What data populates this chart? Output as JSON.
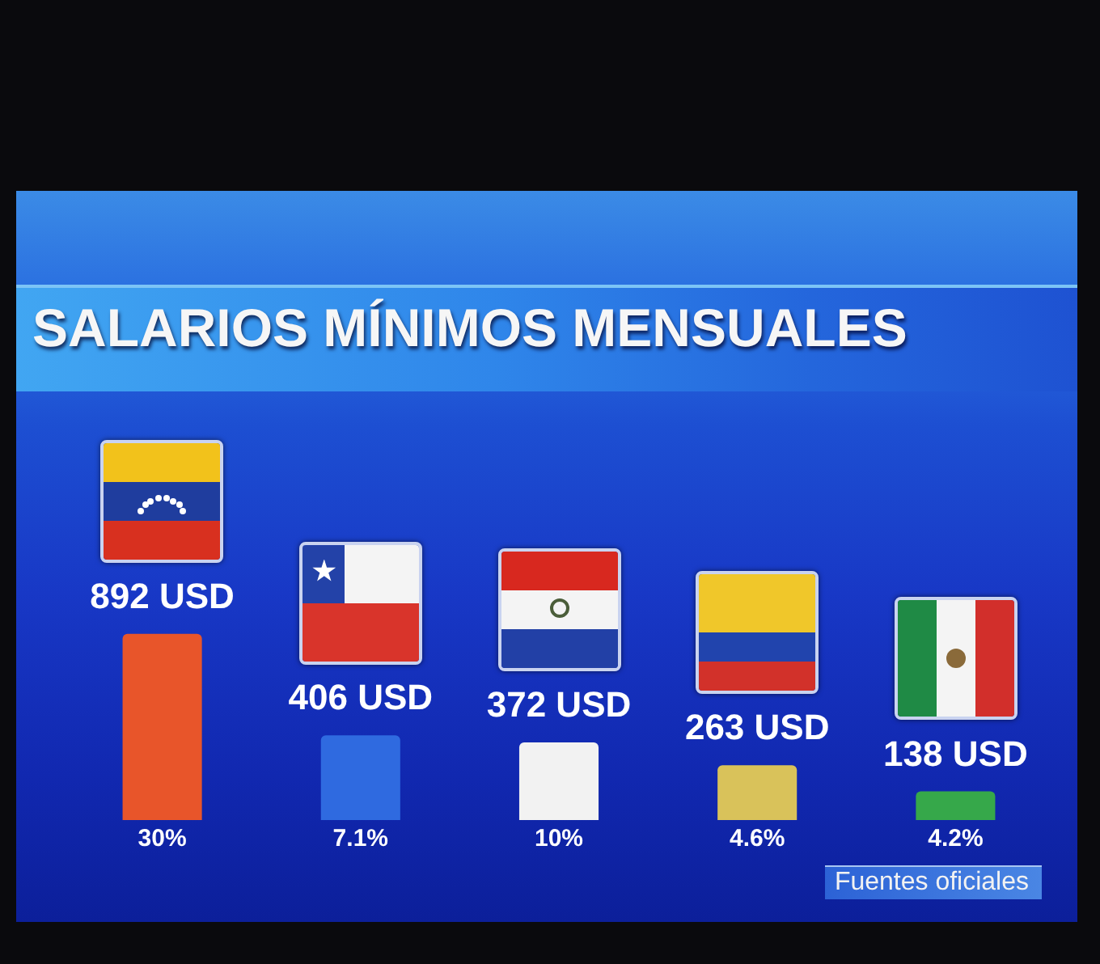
{
  "chart_data": {
    "type": "bar",
    "title": "SALARIOS MÍNIMOS MENSUALES",
    "categories": [
      null,
      null,
      null,
      null,
      null
    ],
    "values": [
      892,
      406,
      372,
      263,
      138
    ],
    "colors": [
      "#e8552a",
      "#2f6ae0",
      "#f2f2f2",
      "#d9c25a",
      "#36a84a"
    ],
    "value_labels": [
      "892 USD",
      "406 USD",
      "372 USD",
      "263 USD",
      "138 USD"
    ],
    "annotations": [
      "30%",
      "7.1%",
      "10%",
      "4.6%",
      "4.2%",
      "Fuentes oficiales"
    ],
    "tick_labels": false
  }
}
